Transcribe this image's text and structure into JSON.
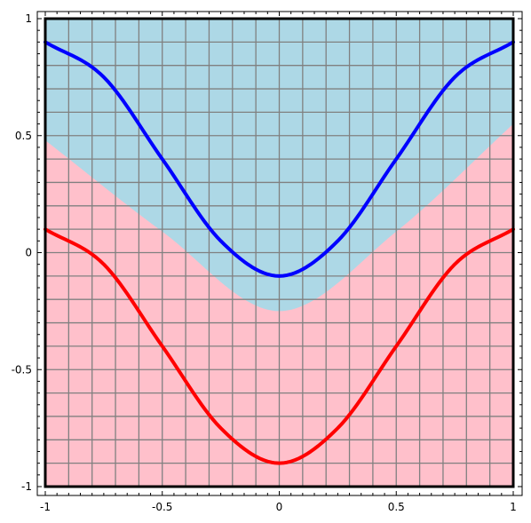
{
  "chart_data": {
    "type": "line",
    "title": "",
    "xlabel": "",
    "ylabel": "",
    "xlim": [
      -1,
      1
    ],
    "ylim": [
      -1,
      1
    ],
    "grid": true,
    "x_ticks": [
      {
        "value": -1,
        "label": "-1"
      },
      {
        "value": -0.5,
        "label": "-0.5"
      },
      {
        "value": 0,
        "label": "0"
      },
      {
        "value": 0.5,
        "label": "0.5"
      },
      {
        "value": 1,
        "label": "1"
      }
    ],
    "y_ticks": [
      {
        "value": 1,
        "label": "1"
      },
      {
        "value": 0.5,
        "label": "0.5"
      },
      {
        "value": 0,
        "label": "0"
      },
      {
        "value": -0.5,
        "label": "-0.5"
      },
      {
        "value": -1,
        "label": "-1"
      }
    ],
    "regions": [
      {
        "color": "#add8e6",
        "lower_boundary": {
          "x": [
            -1,
            -0.5,
            0,
            0.5,
            1
          ],
          "y": [
            0.48,
            0.09,
            -0.25,
            0.09,
            0.55
          ]
        }
      },
      {
        "color": "#ffc0cb"
      }
    ],
    "series": [
      {
        "color": "#0000ff",
        "x": [
          -1,
          -0.75,
          -0.5,
          -0.25,
          0,
          0.25,
          0.5,
          0.75,
          1
        ],
        "y": [
          0.9,
          0.75,
          0.4,
          0.05,
          -0.1,
          0.05,
          0.4,
          0.75,
          0.9
        ]
      },
      {
        "color": "#ff0000",
        "x": [
          -1,
          -0.75,
          -0.5,
          -0.25,
          0,
          0.25,
          0.5,
          0.75,
          1
        ],
        "y": [
          0.1,
          -0.05,
          -0.4,
          -0.75,
          -0.9,
          -0.75,
          -0.4,
          -0.05,
          0.1
        ]
      }
    ]
  }
}
